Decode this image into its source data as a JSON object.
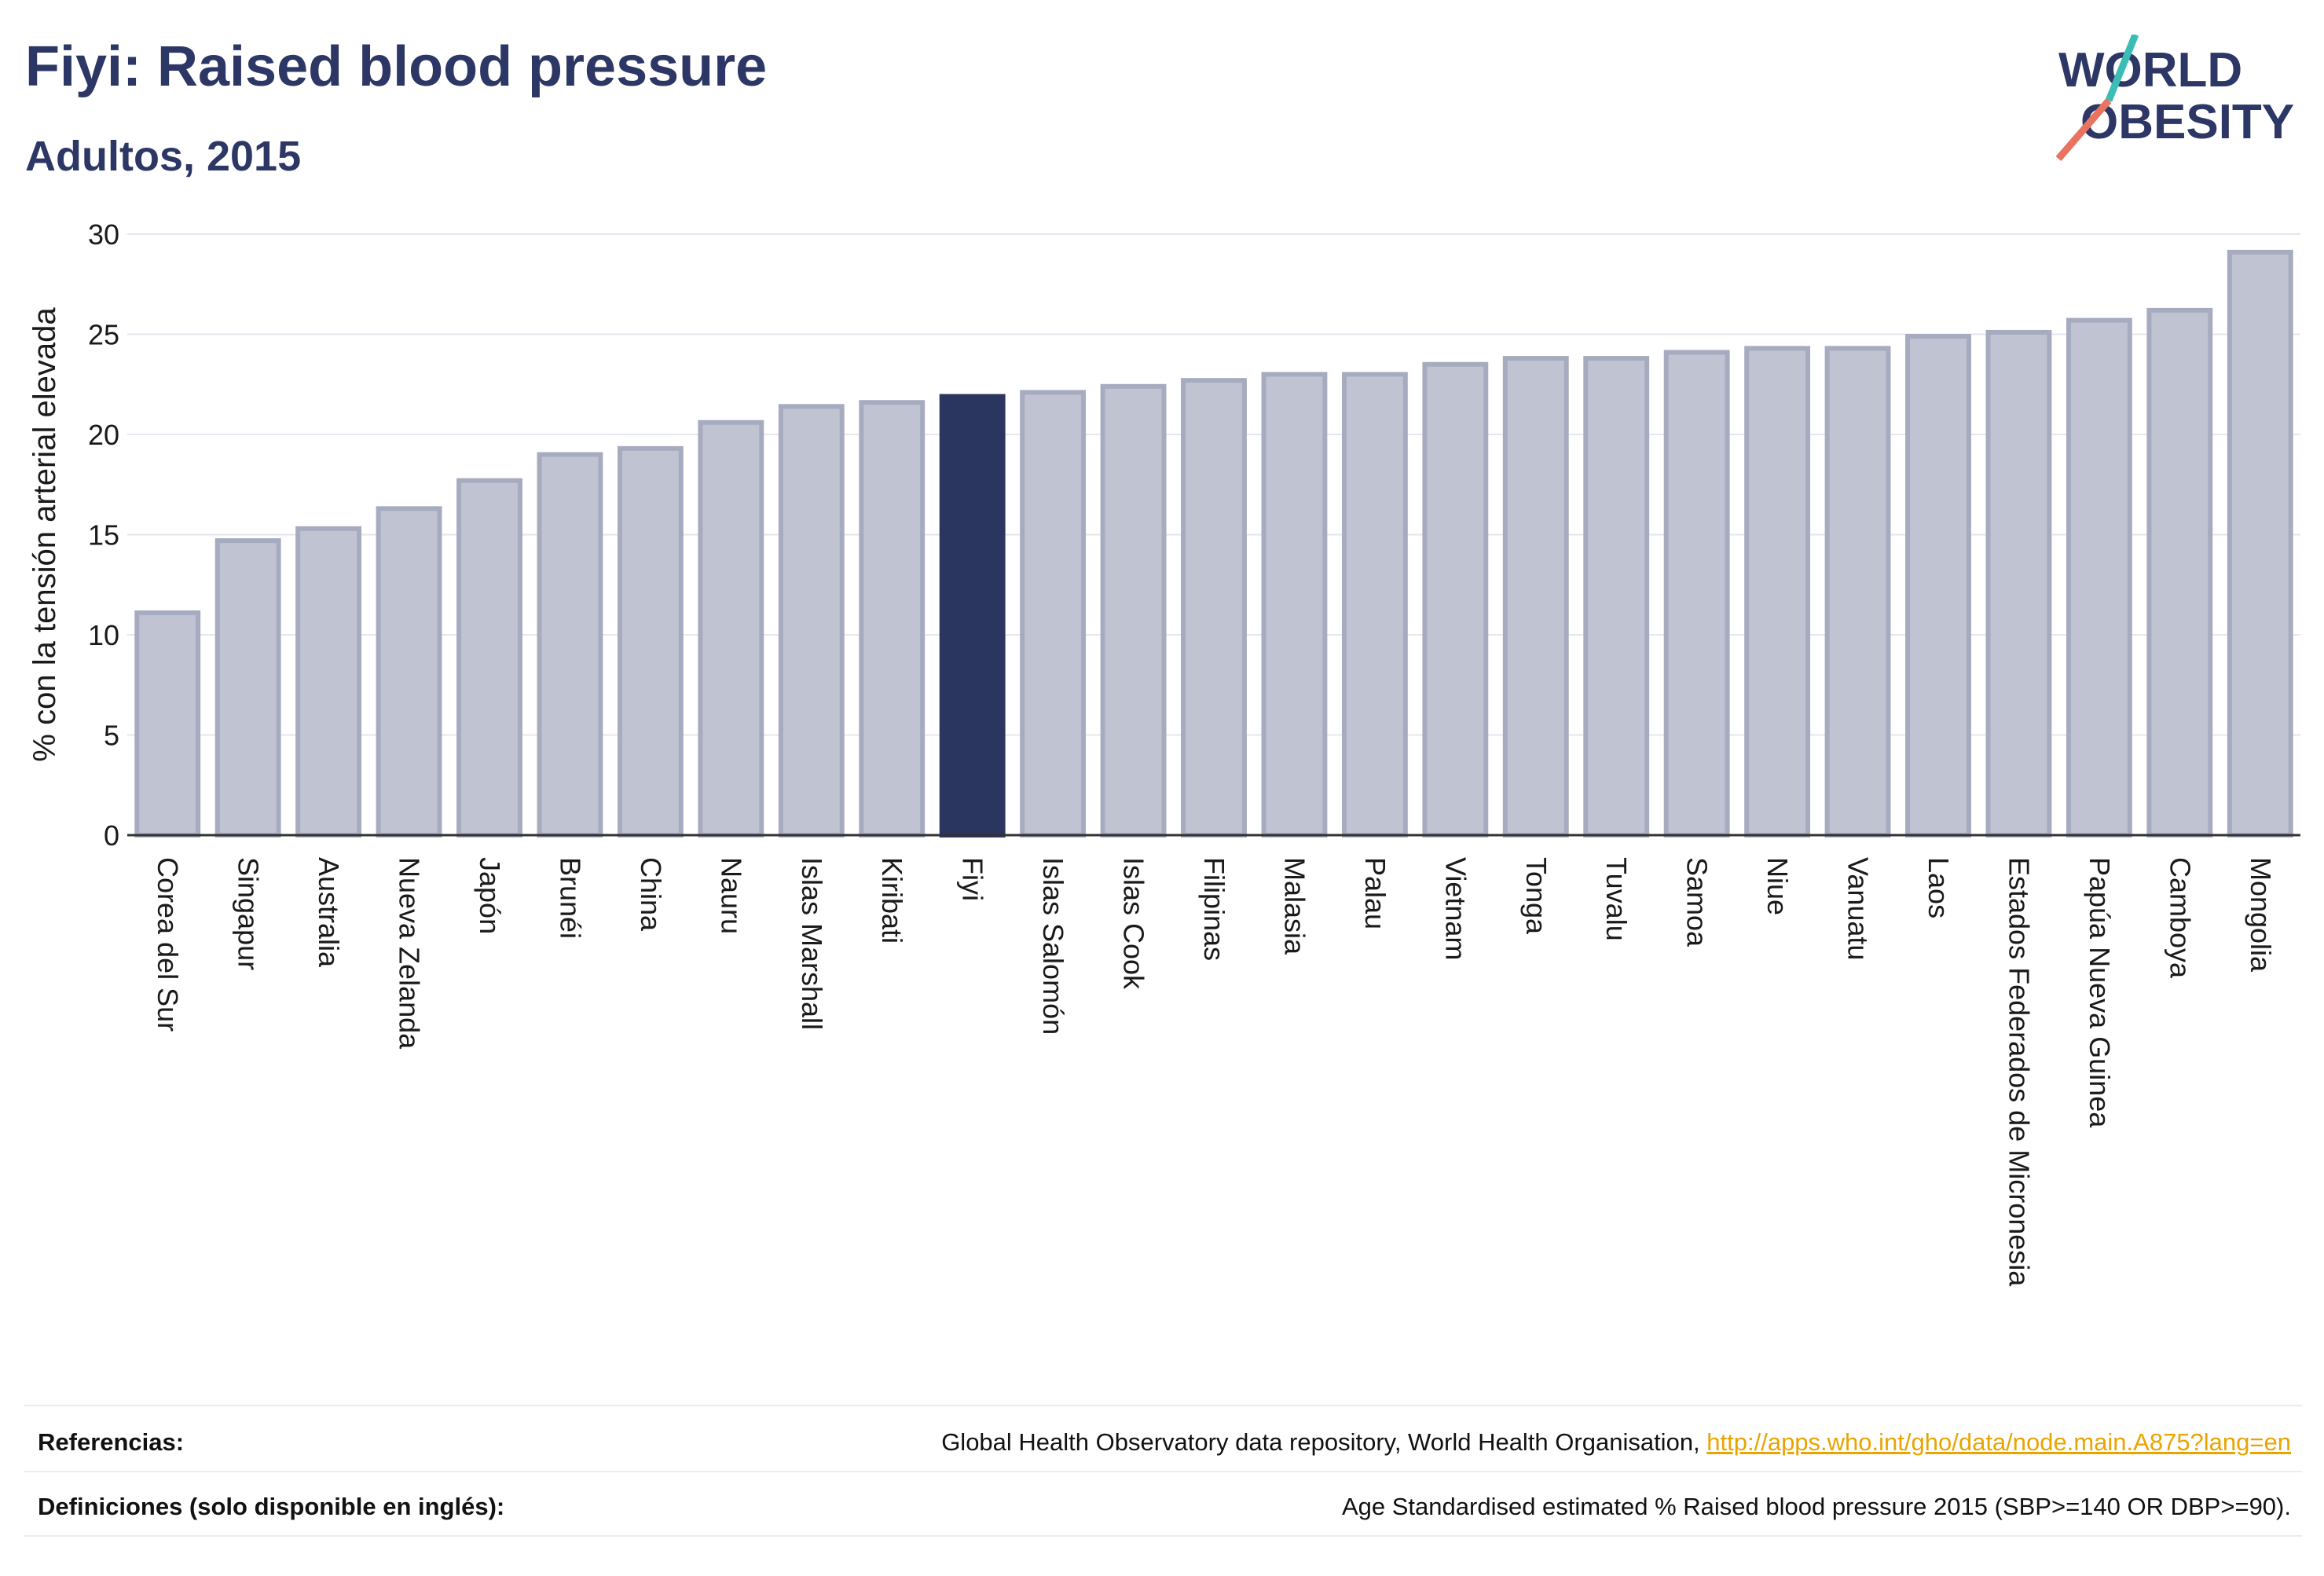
{
  "header": {
    "title": "Fiyi: Raised blood pressure",
    "subtitle": "Adultos, 2015"
  },
  "logo": {
    "line1": "WORLD",
    "line2": "OBESITY",
    "colors": {
      "text": "#2d3766",
      "slash_teal": "#3bbdb5",
      "slash_coral": "#e8735e"
    }
  },
  "colors": {
    "bar_default_fill": "#c0c3d1",
    "bar_default_stroke": "#a6abc0",
    "bar_highlight": "#2b3660",
    "grid": "#e6e6ee",
    "axis_text": "#1a1a1a"
  },
  "chart_data": {
    "type": "bar",
    "title": "Fiyi: Raised blood pressure",
    "subtitle": "Adultos, 2015",
    "ylabel": "% con la tensión arterial elevada",
    "xlabel": "",
    "ylim": [
      0,
      30
    ],
    "yticks": [
      0,
      5,
      10,
      15,
      20,
      25,
      30
    ],
    "grid": true,
    "highlight": "Fiyi",
    "categories": [
      "Corea del Sur",
      "Singapur",
      "Australia",
      "Nueva Zelanda",
      "Japón",
      "Brunéi",
      "China",
      "Nauru",
      "Islas Marshall",
      "Kiribati",
      "Fiyi",
      "Islas Salomón",
      "Islas Cook",
      "Filipinas",
      "Malasia",
      "Palau",
      "Vietnam",
      "Tonga",
      "Tuvalu",
      "Samoa",
      "Niue",
      "Vanuatu",
      "Laos",
      "Estados Federados de Micronesia",
      "Papúa Nueva Guinea",
      "Camboya",
      "Mongolia"
    ],
    "values": [
      11.1,
      14.7,
      15.3,
      16.3,
      17.7,
      19.0,
      19.3,
      20.6,
      21.4,
      21.6,
      21.9,
      22.1,
      22.4,
      22.7,
      23.0,
      23.0,
      23.5,
      23.8,
      23.8,
      24.1,
      24.3,
      24.3,
      24.9,
      25.1,
      25.7,
      26.2,
      29.1
    ]
  },
  "footer": {
    "references_label": "Referencias:",
    "references_text": "Global Health Observatory data repository, World Health Organisation, ",
    "references_link": "http://apps.who.int/gho/data/node.main.A875?lang=en",
    "definitions_label": "Definiciones (solo disponible en inglés):",
    "definitions_text": "Age Standardised estimated % Raised blood pressure 2015 (SBP>=140 OR DBP>=90)."
  }
}
